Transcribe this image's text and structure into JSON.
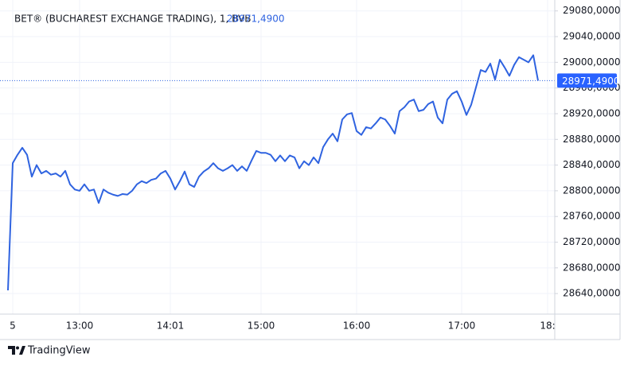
{
  "chart_data": {
    "type": "line",
    "title": "BET® (BUCHAREST EXCHANGE TRADING), 1, BVB",
    "last_price": {
      "value": 28971.49,
      "label": "28971,4900"
    },
    "brand": "TradingView",
    "categories": [
      null,
      "5",
      null,
      null,
      null,
      null,
      null,
      null,
      null,
      null,
      null,
      null,
      null,
      null,
      null,
      "13:00",
      null,
      null,
      null,
      null,
      null,
      null,
      null,
      null,
      null,
      null,
      null,
      null,
      null,
      null,
      null,
      null,
      null,
      null,
      "14:01",
      null,
      null,
      null,
      null,
      null,
      null,
      null,
      null,
      null,
      null,
      null,
      null,
      null,
      null,
      null,
      null,
      null,
      null,
      "15:00",
      null,
      null,
      null,
      null,
      null,
      null,
      null,
      null,
      null,
      null,
      null,
      null,
      null,
      null,
      null,
      null,
      null,
      null,
      null,
      "16:00",
      null,
      null,
      null,
      null,
      null,
      null,
      null,
      null,
      null,
      null,
      null,
      null,
      null,
      null,
      null,
      null,
      null,
      null,
      null,
      null,
      null,
      "17:00",
      null,
      null,
      null,
      null,
      null,
      null,
      null,
      null,
      null,
      null,
      null,
      null,
      null,
      null,
      null,
      null,
      null,
      "18:"
    ],
    "series": [
      {
        "name": "BET",
        "color": "#2f63e0",
        "values": [
          28645,
          28843,
          28856,
          28867,
          28856,
          28822,
          28840,
          28827,
          28831,
          28825,
          28827,
          28822,
          28831,
          28810,
          28802,
          28800,
          28810,
          28800,
          28802,
          28781,
          28802,
          28797,
          28794,
          28792,
          28795,
          28794,
          28800,
          28810,
          28815,
          28812,
          28817,
          28819,
          28827,
          28831,
          28819,
          28802,
          28815,
          28830,
          28810,
          28806,
          28822,
          28830,
          28835,
          28843,
          28835,
          28831,
          28835,
          28840,
          28831,
          28838,
          28831,
          28847,
          28862,
          28859,
          28859,
          28856,
          28846,
          28855,
          28846,
          28855,
          28852,
          28835,
          28846,
          28840,
          28852,
          28843,
          28868,
          28880,
          28889,
          28877,
          28911,
          28919,
          28921,
          28893,
          28887,
          28899,
          28897,
          28905,
          28914,
          28911,
          28901,
          28889,
          28924,
          28930,
          28939,
          28942,
          28924,
          28926,
          28935,
          28939,
          28914,
          28905,
          28942,
          28951,
          28955,
          28939,
          28918,
          28934,
          28961,
          28988,
          28985,
          28998,
          28973,
          29004,
          28992,
          28979,
          28996,
          29008,
          29004,
          29000,
          29011,
          28971.49,
          null,
          null
        ]
      }
    ],
    "ylim": [
      28608,
      29097
    ],
    "yticks": [
      {
        "value": 28640,
        "label": "28640,0000"
      },
      {
        "value": 28680,
        "label": "28680,0000"
      },
      {
        "value": 28720,
        "label": "28720,0000"
      },
      {
        "value": 28760,
        "label": "28760,0000"
      },
      {
        "value": 28800,
        "label": "28800,0000"
      },
      {
        "value": 28840,
        "label": "28840,0000"
      },
      {
        "value": 28880,
        "label": "28880,0000"
      },
      {
        "value": 28920,
        "label": "28920,0000"
      },
      {
        "value": 28960,
        "label": "28960,0000"
      },
      {
        "value": 29000,
        "label": "29000,0000"
      },
      {
        "value": 29040,
        "label": "29040,0000"
      },
      {
        "value": 29080,
        "label": "29080,0000"
      }
    ],
    "grid": true
  }
}
